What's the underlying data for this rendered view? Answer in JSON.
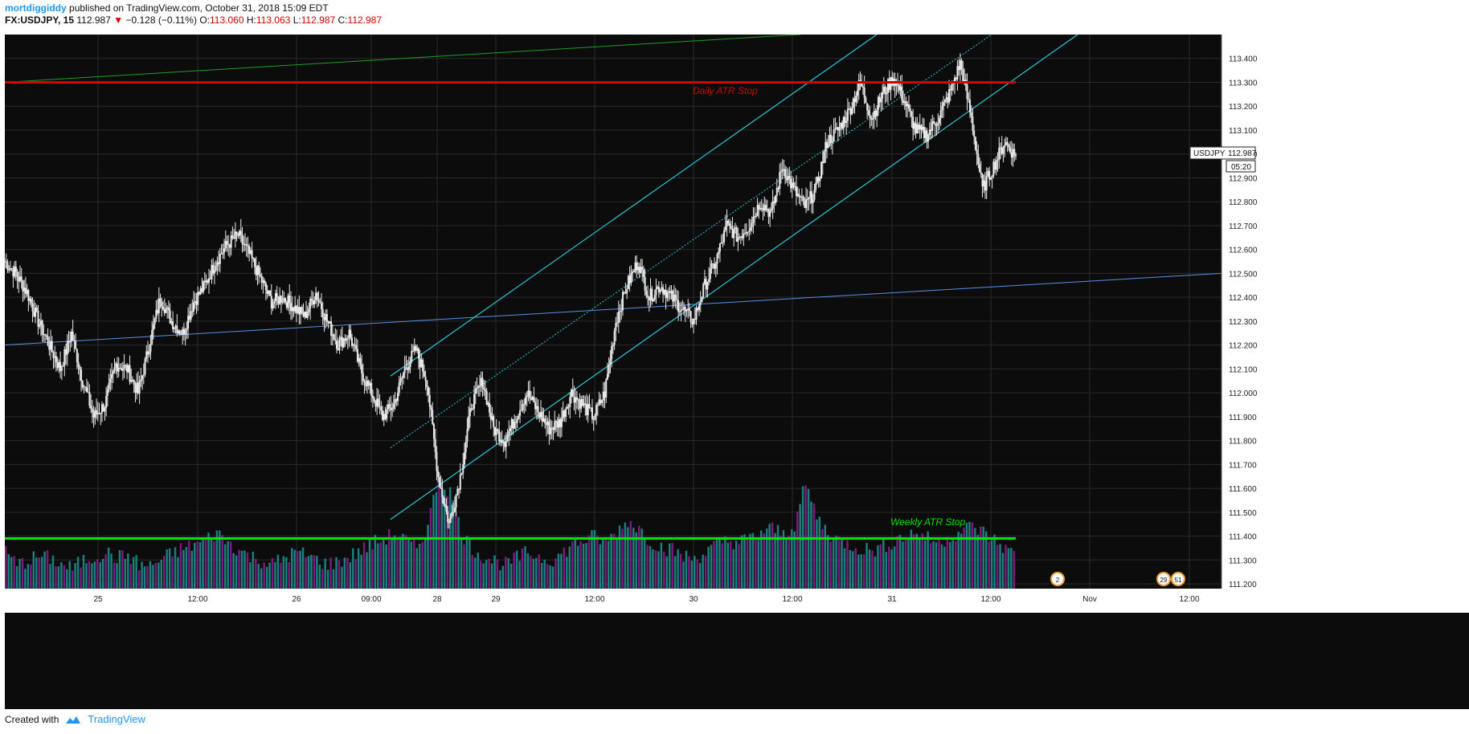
{
  "header": {
    "author": "mortdiggiddy",
    "published_text": "published on TradingView.com, October 31, 2018 15:09 EDT",
    "symbol": "FX:USDJPY, 15",
    "last": "112.987",
    "change": "−0.128 (−0.11%)",
    "o_label": "O:",
    "o_value": "113.060",
    "h_label": "H:",
    "h_value": "113.063",
    "l_label": "L:",
    "l_value": "112.987",
    "c_label": "C:",
    "c_value": "112.987"
  },
  "footer": {
    "created_with": "Created with",
    "brand": "TradingView"
  },
  "price_tag": {
    "label": "USDJPY",
    "value": "112.987",
    "countdown": "05:20"
  },
  "annotations": {
    "daily": "Daily ATR Stop",
    "weekly": "Weekly ATR Stop"
  },
  "event_badges": [
    "2",
    "29",
    "51"
  ],
  "colors": {
    "background": "#0c0c0c",
    "grid": "#2a2a2a",
    "candle": "#e8e8e8",
    "daily_atr": "#d50000",
    "weekly_atr": "#00e600",
    "channel": "#27c6da",
    "trendline_blue": "#5b8ee6",
    "trendline_green": "#1e9e2a",
    "volume_up": "#1b8c8c",
    "volume_down": "#8c1b8c"
  },
  "chart_data": {
    "type": "candlestick",
    "symbol": "USDJPY",
    "interval": "15",
    "y_axis": {
      "ylim": [
        111.18,
        113.5
      ],
      "ticks": [
        "113.400",
        "113.300",
        "113.200",
        "113.100",
        "113.000",
        "112.900",
        "112.800",
        "112.700",
        "112.600",
        "112.500",
        "112.400",
        "112.300",
        "112.200",
        "112.100",
        "112.000",
        "111.900",
        "111.800",
        "111.700",
        "111.600",
        "111.500",
        "111.400",
        "111.300",
        "111.200"
      ]
    },
    "x_axis": {
      "ticks": [
        "25",
        "12:00",
        "26",
        "09:00",
        "28",
        "29",
        "12:00",
        "30",
        "12:00",
        "31",
        "12:00",
        "Nov",
        "12:00"
      ]
    },
    "ohlc_path": [
      112.55,
      112.5,
      112.42,
      112.3,
      112.2,
      112.1,
      112.25,
      112.05,
      111.9,
      111.95,
      112.12,
      112.1,
      112.0,
      112.2,
      112.4,
      112.3,
      112.25,
      112.38,
      112.45,
      112.55,
      112.62,
      112.66,
      112.58,
      112.48,
      112.38,
      112.4,
      112.36,
      112.32,
      112.42,
      112.3,
      112.2,
      112.25,
      112.1,
      112.0,
      111.9,
      111.95,
      112.1,
      112.18,
      112.05,
      111.65,
      111.45,
      111.65,
      111.95,
      112.05,
      111.85,
      111.8,
      111.9,
      112.0,
      111.92,
      111.85,
      111.88,
      112.0,
      111.95,
      111.9,
      112.0,
      112.3,
      112.45,
      112.55,
      112.4,
      112.45,
      112.4,
      112.35,
      112.3,
      112.45,
      112.55,
      112.7,
      112.65,
      112.7,
      112.8,
      112.75,
      112.95,
      112.85,
      112.78,
      112.85,
      113.05,
      113.1,
      113.18,
      113.3,
      113.15,
      113.25,
      113.32,
      113.22,
      113.1,
      113.08,
      113.15,
      113.25,
      113.38,
      113.15,
      112.85,
      112.95,
      113.05,
      112.99
    ],
    "volume": [
      45,
      30,
      35,
      40,
      38,
      30,
      25,
      35,
      40,
      45,
      38,
      42,
      30,
      28,
      36,
      44,
      50,
      55,
      60,
      70,
      58,
      48,
      40,
      35,
      30,
      38,
      45,
      42,
      36,
      30,
      34,
      40,
      48,
      56,
      62,
      68,
      60,
      50,
      80,
      140,
      120,
      70,
      50,
      40,
      35,
      30,
      38,
      45,
      40,
      36,
      42,
      55,
      60,
      65,
      58,
      70,
      85,
      75,
      60,
      52,
      48,
      40,
      38,
      45,
      55,
      60,
      58,
      62,
      70,
      75,
      68,
      80,
      130,
      90,
      70,
      60,
      55,
      50,
      48,
      52,
      60,
      66,
      70,
      62,
      58,
      65,
      72,
      78,
      70,
      60,
      50,
      40
    ],
    "horizontal_levels": [
      {
        "name": "Daily ATR Stop",
        "value": 113.3
      },
      {
        "name": "Weekly ATR Stop",
        "value": 111.39
      }
    ]
  }
}
